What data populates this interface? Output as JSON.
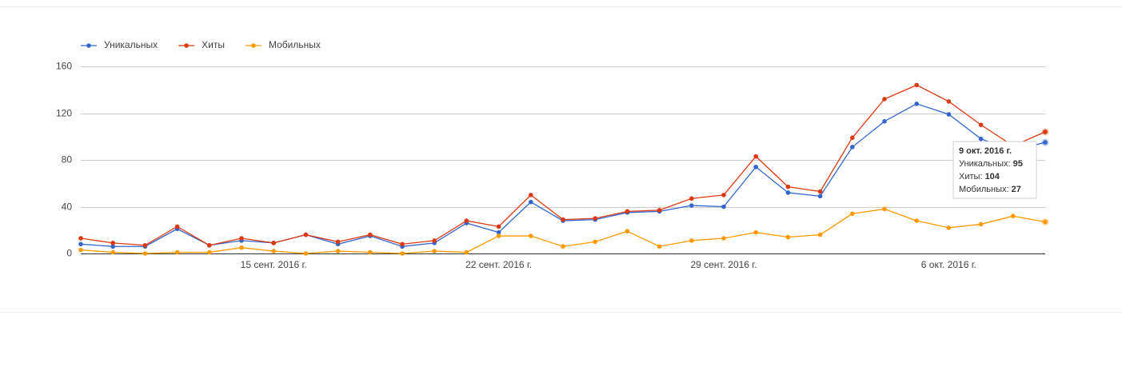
{
  "chart_data": {
    "type": "line",
    "categories": [
      null,
      null,
      null,
      null,
      null,
      null,
      "15 сент. 2016 г.",
      null,
      null,
      null,
      null,
      null,
      null,
      "22 сент. 2016 г.",
      null,
      null,
      null,
      null,
      null,
      null,
      "29 сент. 2016 г.",
      null,
      null,
      null,
      null,
      null,
      null,
      "6 окт. 2016 г.",
      null,
      null,
      null
    ],
    "series": [
      {
        "name": "Уникальных",
        "color": "#3366cc",
        "values": [
          8,
          6,
          6,
          21,
          7,
          11,
          9,
          16,
          8,
          15,
          6,
          9,
          26,
          18,
          44,
          28,
          29,
          35,
          36,
          41,
          40,
          74,
          52,
          49,
          91,
          113,
          128,
          119,
          98,
          88,
          95
        ]
      },
      {
        "name": "Хиты",
        "color": "#dc3912",
        "values": [
          13,
          9,
          7,
          23,
          7,
          13,
          9,
          16,
          10,
          16,
          8,
          11,
          28,
          23,
          50,
          29,
          30,
          36,
          37,
          47,
          50,
          83,
          57,
          53,
          99,
          132,
          144,
          130,
          110,
          92,
          104
        ]
      },
      {
        "name": "Мобильных",
        "color": "#ff9900",
        "values": [
          3,
          1,
          0,
          1,
          1,
          5,
          2,
          0,
          2,
          1,
          0,
          2,
          1,
          15,
          15,
          6,
          10,
          19,
          6,
          11,
          13,
          18,
          14,
          16,
          34,
          38,
          28,
          22,
          25,
          32,
          27
        ]
      }
    ],
    "ylim": [
      0,
      160
    ],
    "yticks": [
      0,
      40,
      80,
      120,
      160
    ],
    "grid": true,
    "legend": "top",
    "tooltip": {
      "title": "9 окт. 2016 г.",
      "index": 30
    }
  }
}
